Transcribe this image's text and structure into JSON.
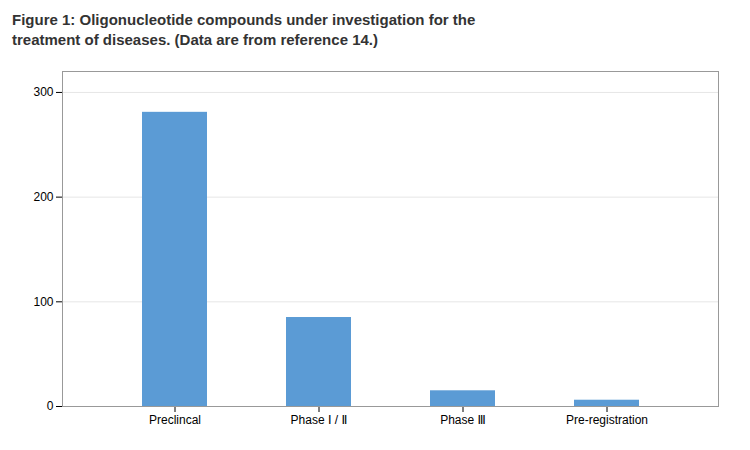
{
  "chart_data": {
    "type": "bar",
    "title": "Figure 1: Oligonucleotide compounds under investigation for the\ntreatment of diseases. (Data are from reference 14.)",
    "categories": [
      "Preclincal",
      "Phase Ⅰ / Ⅱ",
      "Phase Ⅲ",
      "Pre-registration"
    ],
    "values": [
      281,
      85,
      15,
      6
    ],
    "color": "#5b9bd5",
    "ylim": [
      0,
      320
    ],
    "yticks": [
      0,
      100,
      200,
      300
    ],
    "grid": true
  }
}
